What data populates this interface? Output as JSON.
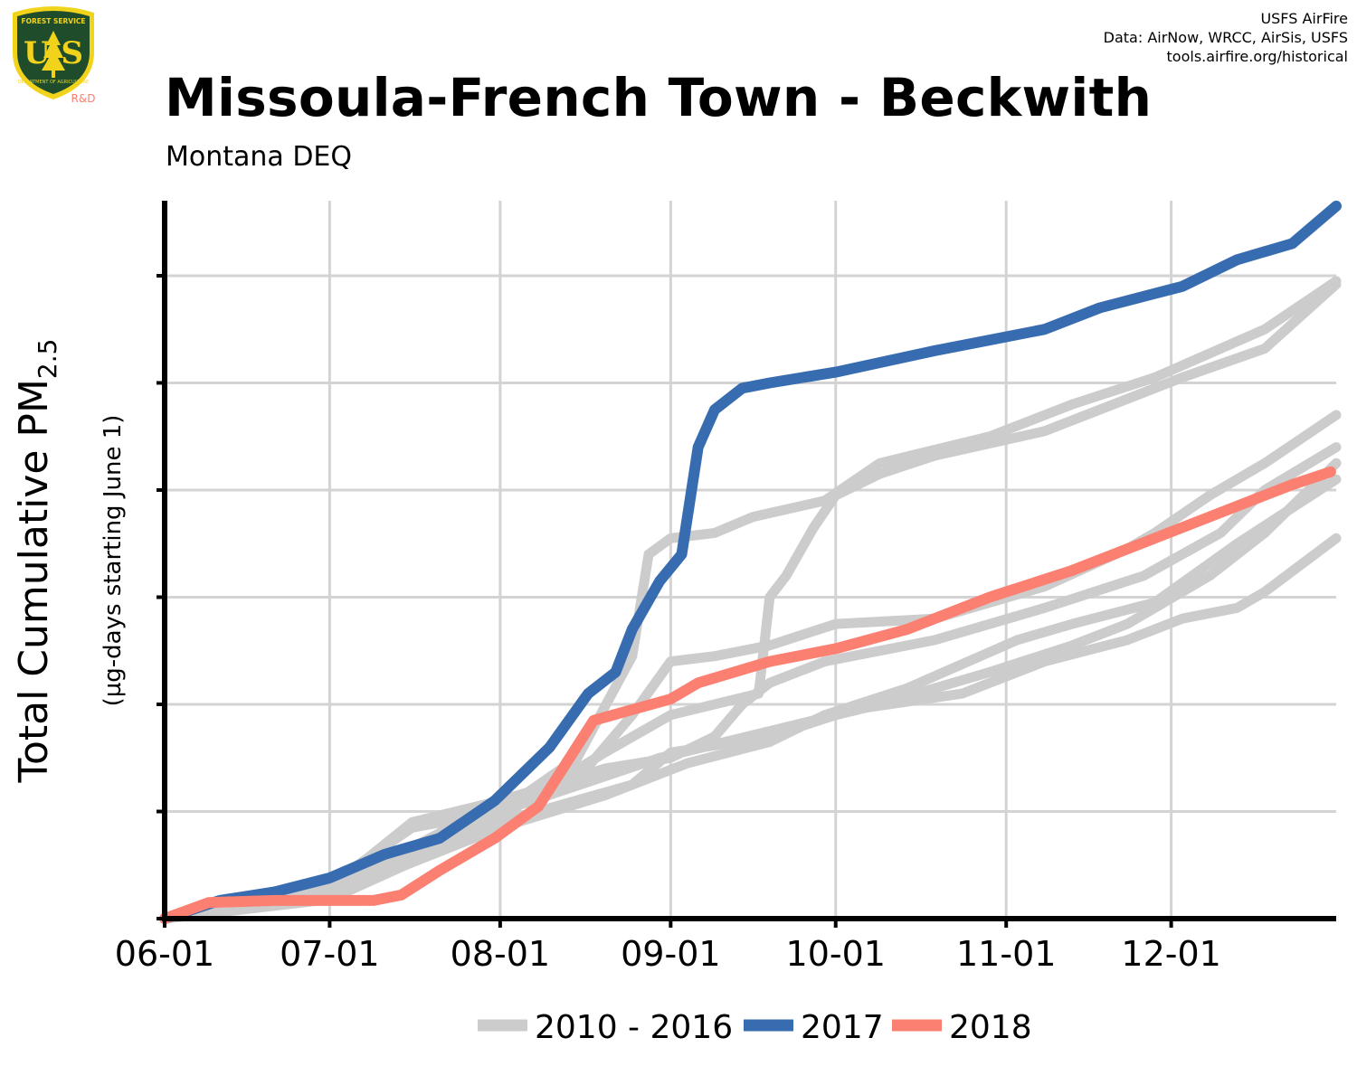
{
  "header": {
    "title": "Missoula-French Town - Beckwith",
    "subtitle": "Montana DEQ",
    "credits": [
      "USFS AirFire",
      "Data: AirNow, WRCC, AirSis, USFS",
      "tools.airfire.org/historical"
    ],
    "logo_top_text": "FOREST SERVICE",
    "logo_letters": "U S",
    "logo_bottom_text": "DEPARTMENT OF AGRICULTURE",
    "logo_tag": "R&D"
  },
  "colors": {
    "history": "#cccccc",
    "year_2017": "#386cb0",
    "year_2018": "#fb8072",
    "grid": "#d3d3d3",
    "axis": "#000000",
    "logo_green": "#1f4d2b",
    "logo_gold": "#f2d31b",
    "logo_tag": "#fb8072"
  },
  "chart_data": {
    "type": "line",
    "ylabel": "Total Cumulative PM",
    "ylabel_subscript": "2.5",
    "ylabel2": "(µg-days starting June 1)",
    "x_tick_labels": [
      "06-01",
      "07-01",
      "08-01",
      "09-01",
      "10-01",
      "11-01",
      "12-01"
    ],
    "x_tick_days": [
      0,
      30,
      61,
      92,
      122,
      153,
      183
    ],
    "xlim": [
      0,
      213
    ],
    "ylim": [
      0,
      6.7
    ],
    "y_ticks": [
      0,
      1,
      2,
      3,
      4,
      5,
      6
    ],
    "y_tick_labels_shown": false,
    "grid": true,
    "legend": {
      "position": "bottom",
      "entries": [
        {
          "label": "2010 - 2016",
          "color": "#cccccc"
        },
        {
          "label": "2017",
          "color": "#386cb0"
        },
        {
          "label": "2018",
          "color": "#fb8072"
        }
      ]
    },
    "series": [
      {
        "group": "history",
        "points": [
          [
            0,
            0
          ],
          [
            30,
            0.32
          ],
          [
            45,
            0.85
          ],
          [
            61,
            1.0
          ],
          [
            75,
            1.5
          ],
          [
            85,
            2.45
          ],
          [
            88,
            3.4
          ],
          [
            92,
            3.55
          ],
          [
            100,
            3.6
          ],
          [
            107,
            3.75
          ],
          [
            120,
            3.9
          ],
          [
            130,
            4.25
          ],
          [
            150,
            4.5
          ],
          [
            165,
            4.8
          ],
          [
            180,
            5.05
          ],
          [
            200,
            5.5
          ],
          [
            213,
            5.95
          ]
        ]
      },
      {
        "group": "history",
        "points": [
          [
            0,
            0
          ],
          [
            30,
            0.2
          ],
          [
            45,
            0.55
          ],
          [
            61,
            0.95
          ],
          [
            80,
            1.55
          ],
          [
            92,
            1.9
          ],
          [
            108,
            2.1
          ],
          [
            110,
            3.0
          ],
          [
            113,
            3.2
          ],
          [
            118,
            3.65
          ],
          [
            122,
            3.95
          ],
          [
            130,
            4.15
          ],
          [
            140,
            4.32
          ],
          [
            160,
            4.55
          ],
          [
            175,
            4.85
          ],
          [
            185,
            5.05
          ],
          [
            200,
            5.32
          ],
          [
            213,
            5.92
          ]
        ]
      },
      {
        "group": "history",
        "points": [
          [
            0,
            0
          ],
          [
            30,
            0.25
          ],
          [
            50,
            0.8
          ],
          [
            61,
            1.05
          ],
          [
            75,
            1.3
          ],
          [
            85,
            1.9
          ],
          [
            92,
            2.4
          ],
          [
            100,
            2.45
          ],
          [
            110,
            2.55
          ],
          [
            122,
            2.75
          ],
          [
            140,
            2.8
          ],
          [
            160,
            3.1
          ],
          [
            175,
            3.45
          ],
          [
            180,
            3.6
          ],
          [
            190,
            3.95
          ],
          [
            200,
            4.25
          ],
          [
            213,
            4.7
          ]
        ]
      },
      {
        "group": "history",
        "points": [
          [
            0,
            0
          ],
          [
            30,
            0.28
          ],
          [
            45,
            0.9
          ],
          [
            61,
            1.1
          ],
          [
            80,
            1.4
          ],
          [
            92,
            1.5
          ],
          [
            100,
            1.7
          ],
          [
            105,
            2.0
          ],
          [
            110,
            2.2
          ],
          [
            120,
            2.4
          ],
          [
            140,
            2.6
          ],
          [
            160,
            2.9
          ],
          [
            178,
            3.2
          ],
          [
            192,
            3.6
          ],
          [
            200,
            4.0
          ],
          [
            213,
            4.4
          ]
        ]
      },
      {
        "group": "history",
        "points": [
          [
            0,
            0
          ],
          [
            30,
            0.3
          ],
          [
            61,
            1.0
          ],
          [
            90,
            1.5
          ],
          [
            110,
            1.75
          ],
          [
            130,
            2.0
          ],
          [
            150,
            2.3
          ],
          [
            165,
            2.55
          ],
          [
            175,
            2.75
          ],
          [
            190,
            3.2
          ],
          [
            200,
            3.6
          ],
          [
            213,
            4.25
          ]
        ]
      },
      {
        "group": "history",
        "points": [
          [
            0,
            0
          ],
          [
            30,
            0.22
          ],
          [
            61,
            0.85
          ],
          [
            80,
            1.15
          ],
          [
            95,
            1.45
          ],
          [
            110,
            1.65
          ],
          [
            120,
            1.9
          ],
          [
            135,
            2.15
          ],
          [
            155,
            2.6
          ],
          [
            165,
            2.75
          ],
          [
            180,
            2.95
          ],
          [
            195,
            3.5
          ],
          [
            213,
            4.1
          ]
        ]
      },
      {
        "group": "history",
        "points": [
          [
            0,
            0
          ],
          [
            30,
            0.18
          ],
          [
            61,
            0.9
          ],
          [
            85,
            1.25
          ],
          [
            92,
            1.55
          ],
          [
            110,
            1.7
          ],
          [
            125,
            1.95
          ],
          [
            145,
            2.1
          ],
          [
            160,
            2.4
          ],
          [
            175,
            2.6
          ],
          [
            185,
            2.8
          ],
          [
            195,
            2.9
          ],
          [
            200,
            3.05
          ],
          [
            213,
            3.55
          ]
        ]
      },
      {
        "group": "year_2017",
        "points": [
          [
            0,
            0
          ],
          [
            10,
            0.17
          ],
          [
            20,
            0.25
          ],
          [
            30,
            0.38
          ],
          [
            40,
            0.6
          ],
          [
            50,
            0.75
          ],
          [
            60,
            1.1
          ],
          [
            70,
            1.6
          ],
          [
            77,
            2.1
          ],
          [
            82,
            2.3
          ],
          [
            85,
            2.7
          ],
          [
            90,
            3.15
          ],
          [
            94,
            3.4
          ],
          [
            97,
            4.4
          ],
          [
            100,
            4.75
          ],
          [
            105,
            4.95
          ],
          [
            110,
            5.0
          ],
          [
            122,
            5.1
          ],
          [
            140,
            5.3
          ],
          [
            160,
            5.5
          ],
          [
            170,
            5.7
          ],
          [
            185,
            5.9
          ],
          [
            195,
            6.15
          ],
          [
            205,
            6.3
          ],
          [
            213,
            6.65
          ]
        ]
      },
      {
        "group": "year_2018",
        "points": [
          [
            0,
            0
          ],
          [
            8,
            0.15
          ],
          [
            20,
            0.17
          ],
          [
            35,
            0.17
          ],
          [
            38,
            0.17
          ],
          [
            43,
            0.22
          ],
          [
            50,
            0.45
          ],
          [
            60,
            0.75
          ],
          [
            68,
            1.05
          ],
          [
            73,
            1.45
          ],
          [
            78,
            1.85
          ],
          [
            85,
            1.95
          ],
          [
            92,
            2.05
          ],
          [
            97,
            2.2
          ],
          [
            110,
            2.4
          ],
          [
            122,
            2.52
          ],
          [
            135,
            2.7
          ],
          [
            150,
            3.0
          ],
          [
            165,
            3.25
          ],
          [
            180,
            3.55
          ],
          [
            195,
            3.85
          ],
          [
            205,
            4.05
          ],
          [
            212,
            4.17
          ]
        ]
      }
    ]
  }
}
